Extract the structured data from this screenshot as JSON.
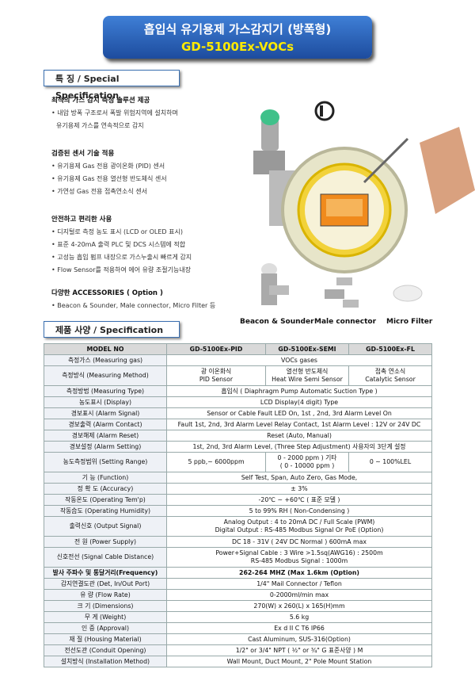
{
  "header": {
    "title": "흡입식 유기용제 가스감지기 (방폭형)",
    "model": "GD-5100Ex-VOCs"
  },
  "features": {
    "label": "특 징 / Special Specification",
    "groups": [
      {
        "title": "최적의 가스 감지 측정 솔루션 제공",
        "items": [
          "• 내압 방폭 구조로서 폭발 위험지역에 설치하며",
          "유기용제 가스를 연속적으로 감지"
        ]
      },
      {
        "title": "검증된 센서 기술 적용",
        "items": [
          "• 유기용제 Gas 전용 광이온화 (PID) 센서",
          "• 유기용제 Gas 전용 열선형 반도체식 센서",
          "• 가연성 Gas 전용 접촉연소식 센서"
        ]
      },
      {
        "title": "안전하고 편리한 사용",
        "items": [
          "• 디지털로 측정 농도 표시 (LCD or OLED 표시)",
          "• 표준 4-20mA 출력 PLC 및 DCS 시스템에 적합",
          "• 고성능 흡입 펌프 내장으로 가스누출시 빠르게 감지",
          "• Flow Sensor를 적용하여 에어 유량 조절기능내장"
        ]
      },
      {
        "title": "다양한 ACCESSORIES ( Option )",
        "items": [
          "• Beacon & Sounder, Male connector, Micro Filter 등"
        ]
      }
    ]
  },
  "accessories": [
    "Beacon & Sounder",
    "Male connector",
    "Micro Filter"
  ],
  "spec": {
    "label": "제품 사양 / Specification",
    "header": [
      "MODEL NO",
      "GD-5100Ex-PID",
      "GD-5100Ex-SEMI",
      "GD-5100Ex-FL"
    ],
    "rows": [
      {
        "label": "측정가스 (Measuring gas)",
        "cells": [
          "VOCs gases"
        ]
      },
      {
        "label": "측정방식 (Measuring Method)",
        "cells": [
          [
            "광 이온화식",
            "PID Sensor"
          ],
          [
            "열선형 반도체식",
            "Heat Wire Semi Sensor"
          ],
          [
            "접촉 연소식",
            "Catalytic Sensor"
          ]
        ]
      },
      {
        "label": "측정방법 (Measuring Type)",
        "cells": [
          "흡입식 ( Diaphragm Pump Automatic Suction Type )"
        ]
      },
      {
        "label": "농도표시 (Display)",
        "cells": [
          "LCD Display(4 digit) Type"
        ]
      },
      {
        "label": "경보표시 (Alarm Signal)",
        "cells": [
          "Sensor or Cable Fault LED On, 1st , 2nd, 3rd Alarm Level On"
        ]
      },
      {
        "label": "경보출력 (Alarm Contact)",
        "cells": [
          "Fault 1st, 2nd, 3rd Alarm Level Relay Contact, 1st Alarm Level : 12V or 24V DC"
        ]
      },
      {
        "label": "경보해제 (Alarm Reset)",
        "cells": [
          "Reset (Auto, Manual)"
        ]
      },
      {
        "label": "경보설정 (Alarm Setting)",
        "cells": [
          "1st, 2nd, 3rd  Alarm Level, (Three Step Adjustment) 사용자의 3단계 설정"
        ]
      },
      {
        "label": "농도측정범위 (Setting Range)",
        "cells": [
          "5 ppb,~ 6000ppm",
          [
            "0 - 2000 ppm ) 기타",
            "( 0 - 10000 ppm )"
          ],
          "0 ~ 100%LEL"
        ]
      },
      {
        "label": "기 능 (Function)",
        "cells": [
          "Self Test, Span, Auto Zero, Gas Mode,"
        ]
      },
      {
        "label": "정 확 도 (Accuracy)",
        "cells": [
          "± 3%"
        ]
      },
      {
        "label": "작동온도 (Operating Tem'p)",
        "cells": [
          "-20℃ ~ +60℃ ( 표준 모델 )"
        ]
      },
      {
        "label": "작동습도 (Operating Humidity)",
        "cells": [
          "5 to 99% RH ( Non-Condensing )"
        ]
      },
      {
        "label": "출력신호 (Output Signal)",
        "cells": [
          [
            "Analog Output : 4 to 20mA DC / Full Scale (PWM)",
            "Digital Output : RS-485 Modbus Signal Or PoE (Option)"
          ]
        ]
      },
      {
        "label": "전 원 (Power Supply)",
        "cells": [
          "DC 18 - 31V ( 24V DC Normal ) 600mA max"
        ]
      },
      {
        "label": "신호전선 (Signal Cable Distance)",
        "cells": [
          [
            "Power+Signal Cable : 3 Wire >1.5sq(AWG16) : 2500m",
            "RS-485 Modbus Signal : 1000m"
          ]
        ]
      },
      {
        "label": "발사 주파수 및 통달거리(Frequency)",
        "cells": [
          "262-264 MHZ (Max 1.6km (Option)"
        ],
        "bold": true
      },
      {
        "label": "감지연결도관 (Det, In/Out Port)",
        "cells": [
          "1/4\" Mail Connector / Teflon"
        ]
      },
      {
        "label": "유 량 (Flow Rate)",
        "cells": [
          "0-2000ml/min max"
        ]
      },
      {
        "label": "크 기 (Dimensions)",
        "cells": [
          "270(W) x 260(L) x 165(H)mm"
        ]
      },
      {
        "label": "무 게 (Weight)",
        "cells": [
          "5.6 kg"
        ]
      },
      {
        "label": "인 증 (Approval)",
        "cells": [
          "Ex d II C T6  IP66"
        ]
      },
      {
        "label": "재 질 (Housing Material)",
        "cells": [
          "Cast Aluminum, SUS-316(Option)"
        ]
      },
      {
        "label": "전선도관 (Conduit Opening)",
        "cells": [
          "1/2\" or 3/4\" NPT ( ½\" or ¾\" G 표준사양 ) M"
        ]
      },
      {
        "label": "설치방식 (Installation Method)",
        "cells": [
          "Wall Mount,  Duct Mount,  2\" Pole Mount Station"
        ]
      }
    ]
  }
}
